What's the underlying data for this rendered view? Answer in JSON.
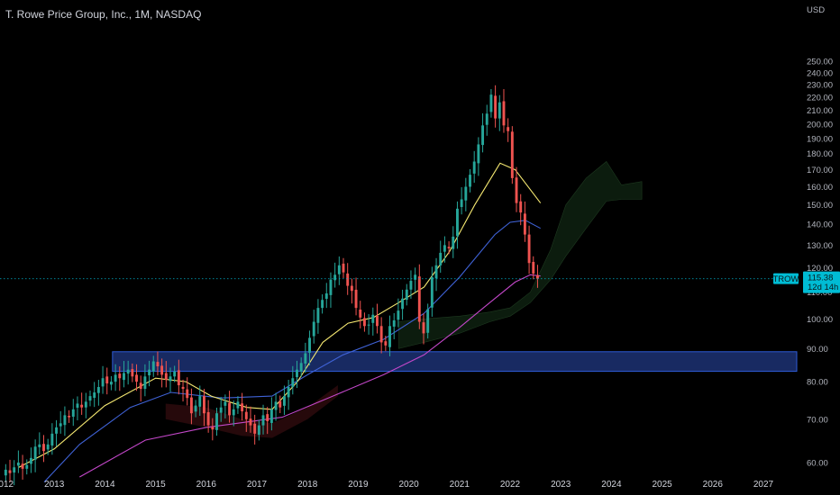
{
  "header": {
    "symbol_title": "T. Rowe Price Group, Inc., 1M, NASDAQ"
  },
  "chart_data": {
    "type": "candlestick",
    "currency": "USD",
    "y_ticks": [
      60,
      70,
      80,
      90,
      100,
      110,
      120,
      130,
      140,
      150,
      160,
      170,
      180,
      190,
      200,
      210,
      220,
      230,
      240,
      250
    ],
    "y_tick_labels": [
      "60.00",
      "70.00",
      "80.00",
      "90.00",
      "100.00",
      "110.00",
      "120.00",
      "130.00",
      "140.00",
      "150.00",
      "160.00",
      "170.00",
      "180.00",
      "190.00",
      "200.00",
      "210.00",
      "220.00",
      "230.00",
      "240.00",
      "250.00"
    ],
    "x_ticks": [
      2012,
      2013,
      2014,
      2015,
      2016,
      2017,
      2018,
      2019,
      2020,
      2021,
      2022,
      2023,
      2024,
      2025,
      2026,
      2027
    ],
    "x_tick_labels": [
      "2012",
      "2013",
      "2014",
      "2015",
      "2016",
      "2017",
      "2018",
      "2019",
      "2020",
      "2021",
      "2022",
      "2023",
      "2024",
      "2025",
      "2026",
      "2027"
    ],
    "x_range": [
      2012.0,
      2027.75
    ],
    "y_range": [
      55,
      258
    ],
    "log_scale": true,
    "closes": [
      58.5,
      57.8,
      59.0,
      60.0,
      58.7,
      59.5,
      61.0,
      63.5,
      64.0,
      62.5,
      64.0,
      66.5,
      68.0,
      69.0,
      71.0,
      70.5,
      72.5,
      74.0,
      73.0,
      74.5,
      76.0,
      77.0,
      78.5,
      81.0,
      79.5,
      80.0,
      82.0,
      81.0,
      82.5,
      83.5,
      81.5,
      80.0,
      78.0,
      81.5,
      83.5,
      86.0,
      84.5,
      82.0,
      80.5,
      81.5,
      83.0,
      79.0,
      78.0,
      75.5,
      71.5,
      73.5,
      76.0,
      71.5,
      68.5,
      67.5,
      71.5,
      73.0,
      74.5,
      71.0,
      72.5,
      74.5,
      72.0,
      70.0,
      68.5,
      66.5,
      68.5,
      71.0,
      69.5,
      72.5,
      74.5,
      73.0,
      76.0,
      78.5,
      81.0,
      83.5,
      85.5,
      88.5,
      93.5,
      99.0,
      104.0,
      107.0,
      109.5,
      115.0,
      117.0,
      121.0,
      118.0,
      112.5,
      110.5,
      104.0,
      100.5,
      97.5,
      98.0,
      101.5,
      97.5,
      92.0,
      91.0,
      97.5,
      99.5,
      103.0,
      107.5,
      111.0,
      114.5,
      117.0,
      99.0,
      95.0,
      103.5,
      116.0,
      121.0,
      126.5,
      130.0,
      128.5,
      134.0,
      148.0,
      153.0,
      160.0,
      167.0,
      175.0,
      186.0,
      199.0,
      207.5,
      222.0,
      204.0,
      216.0,
      199.0,
      195.0,
      165.0,
      151.0,
      146.0,
      135.0,
      122.0,
      117.5,
      115.38
    ],
    "last_price": 115.38,
    "last_price_label": "115.38",
    "countdown_label": "12d 14h",
    "ticker": "TROW",
    "support_zone": [
      83,
      89
    ],
    "support_zone_x": [
      2014.15,
      2027.75
    ],
    "moving_average_yellow": [
      [
        2012.3,
        59
      ],
      [
        2013.0,
        63
      ],
      [
        2014.0,
        73.5
      ],
      [
        2015.0,
        81
      ],
      [
        2015.6,
        80
      ],
      [
        2016.1,
        76
      ],
      [
        2016.8,
        73
      ],
      [
        2017.3,
        72.5
      ],
      [
        2017.8,
        80
      ],
      [
        2018.3,
        92
      ],
      [
        2018.8,
        98.5
      ],
      [
        2019.3,
        100.5
      ],
      [
        2019.8,
        106
      ],
      [
        2020.3,
        112
      ],
      [
        2020.8,
        127
      ],
      [
        2021.3,
        150
      ],
      [
        2021.8,
        174
      ],
      [
        2022.1,
        170
      ],
      [
        2022.6,
        151
      ]
    ],
    "moving_average_blue": [
      [
        2012.8,
        56
      ],
      [
        2013.5,
        64
      ],
      [
        2014.5,
        73
      ],
      [
        2015.3,
        77
      ],
      [
        2016.3,
        75.5
      ],
      [
        2017.3,
        76
      ],
      [
        2018.0,
        82
      ],
      [
        2018.7,
        88
      ],
      [
        2019.5,
        93
      ],
      [
        2020.3,
        102
      ],
      [
        2021.0,
        116
      ],
      [
        2021.7,
        135
      ],
      [
        2022.0,
        141
      ],
      [
        2022.3,
        142
      ],
      [
        2022.6,
        138
      ]
    ],
    "moving_average_magenta": [
      [
        2013.5,
        57
      ],
      [
        2014.8,
        65
      ],
      [
        2016.0,
        68
      ],
      [
        2017.5,
        70.5
      ],
      [
        2018.5,
        76
      ],
      [
        2019.5,
        82
      ],
      [
        2020.3,
        88
      ],
      [
        2021.0,
        97
      ],
      [
        2021.6,
        106
      ],
      [
        2022.1,
        114
      ],
      [
        2022.4,
        117
      ],
      [
        2022.6,
        116.5
      ]
    ],
    "cloud_upper": [
      [
        2019.8,
        99
      ],
      [
        2020.3,
        100
      ],
      [
        2021.0,
        101
      ],
      [
        2021.6,
        102.5
      ],
      [
        2022.0,
        104
      ],
      [
        2022.4,
        110
      ],
      [
        2022.8,
        128
      ],
      [
        2023.1,
        150
      ],
      [
        2023.5,
        165
      ],
      [
        2023.9,
        175
      ],
      [
        2024.2,
        161
      ],
      [
        2024.6,
        163
      ]
    ],
    "cloud_lower": [
      [
        2019.8,
        90
      ],
      [
        2020.3,
        92
      ],
      [
        2021.0,
        95
      ],
      [
        2021.6,
        99
      ],
      [
        2022.0,
        101
      ],
      [
        2022.4,
        106
      ],
      [
        2022.8,
        115
      ],
      [
        2023.1,
        125
      ],
      [
        2023.5,
        138
      ],
      [
        2023.9,
        152
      ],
      [
        2024.2,
        153
      ],
      [
        2024.6,
        153
      ]
    ],
    "colors": {
      "up": "#26a69a",
      "down": "#ef5350",
      "ma_yellow": "#f5e871",
      "ma_blue": "#3f62d6",
      "ma_magenta": "#c347c9",
      "support_fill": "#1c3173",
      "support_stroke": "#2e5bd6",
      "tag_bg": "#00bcd4",
      "tag_text": "#0a1a1e",
      "cloud_fill": "#0c1c0e",
      "cloud_red_fill": "#26090b"
    }
  }
}
